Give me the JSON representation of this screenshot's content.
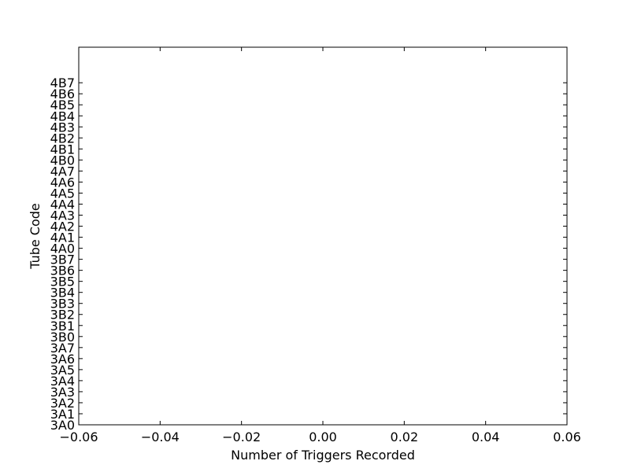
{
  "chart_data": {
    "type": "bar",
    "orientation": "horizontal",
    "title": "",
    "xlabel": "Number of Triggers Recorded",
    "ylabel": "Tube Code",
    "xlim": [
      -0.06,
      0.06
    ],
    "x_ticks": [
      -0.06,
      -0.04,
      -0.02,
      0.0,
      0.02,
      0.04,
      0.06
    ],
    "x_tick_labels": [
      "−0.06",
      "−0.04",
      "−0.02",
      "0.00",
      "0.02",
      "0.04",
      "0.06"
    ],
    "categories": [
      "3A0",
      "3A1",
      "3A2",
      "3A3",
      "3A4",
      "3A5",
      "3A6",
      "3A7",
      "3B0",
      "3B1",
      "3B2",
      "3B3",
      "3B4",
      "3B5",
      "3B6",
      "3B7",
      "4A0",
      "4A1",
      "4A2",
      "4A3",
      "4A4",
      "4A5",
      "4A6",
      "4A7",
      "4B0",
      "4B1",
      "4B2",
      "4B3",
      "4B4",
      "4B5",
      "4B6",
      "4B7"
    ],
    "values": [
      0,
      0,
      0,
      0,
      0,
      0,
      0,
      0,
      0,
      0,
      0,
      0,
      0,
      0,
      0,
      0,
      0,
      0,
      0,
      0,
      0,
      0,
      0,
      0,
      0,
      0,
      0,
      0,
      0,
      0,
      0,
      0
    ],
    "bar_color": "#0000ff",
    "edge_color": "#000000",
    "grid": false,
    "legend": "none"
  }
}
